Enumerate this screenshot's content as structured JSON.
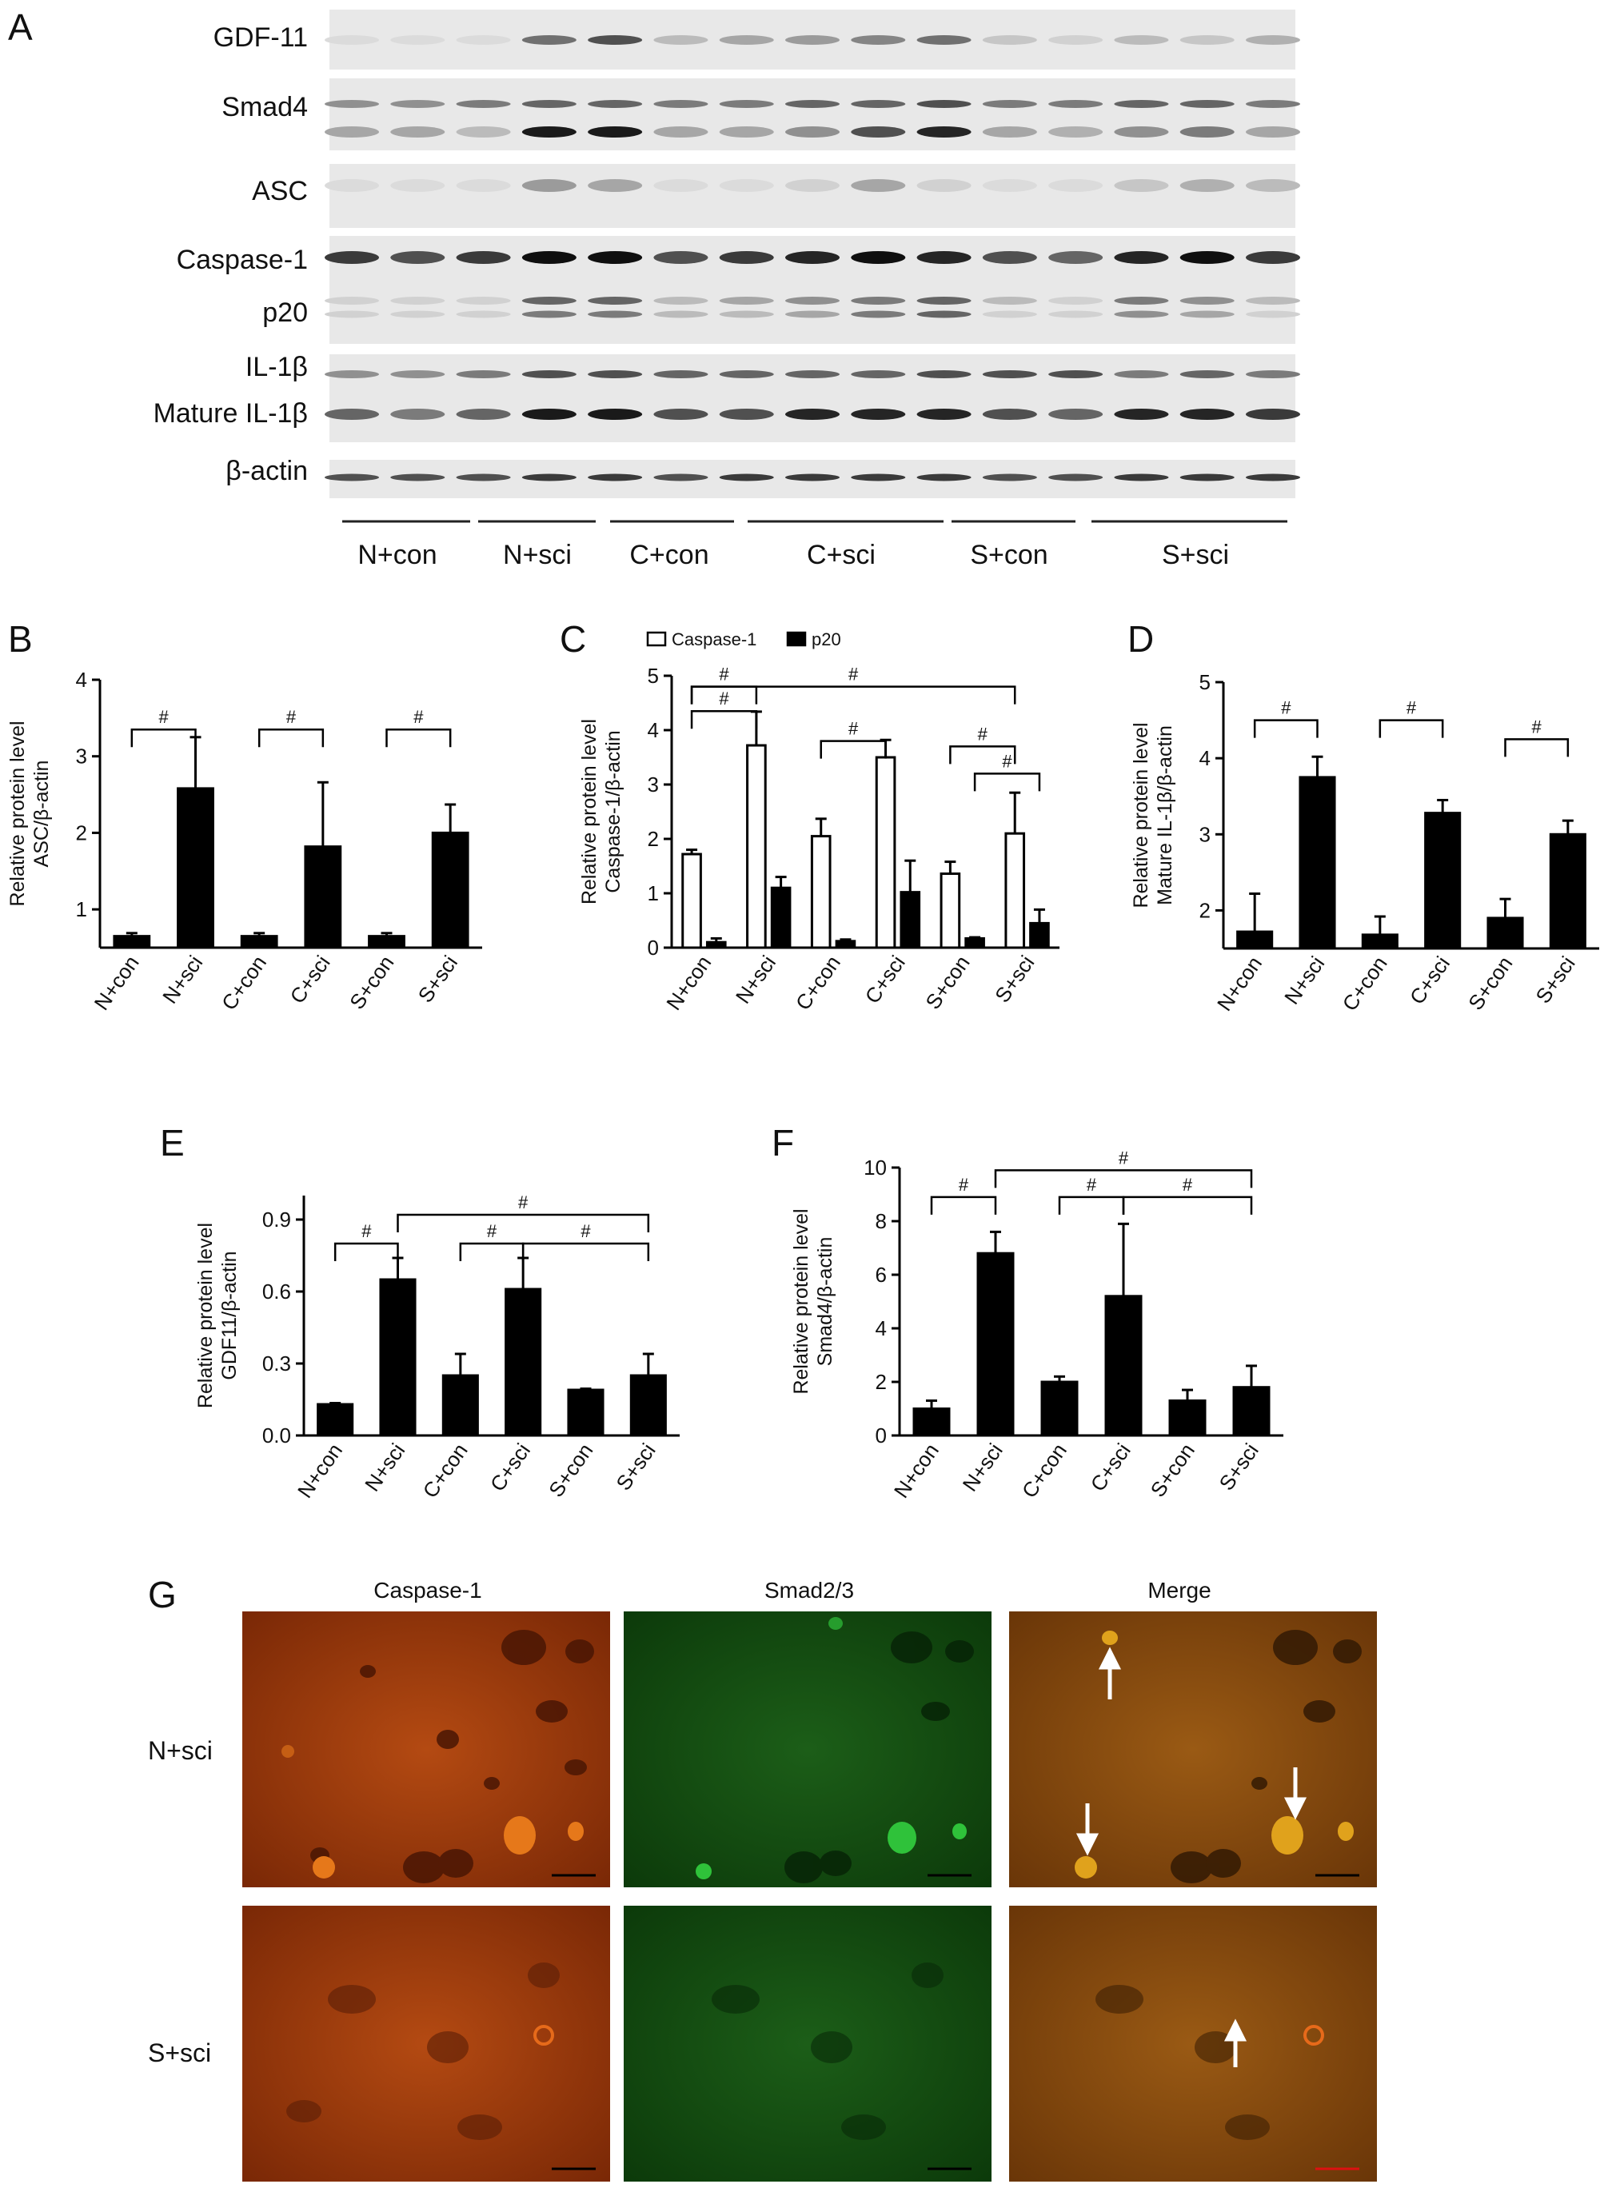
{
  "figure": {
    "panel_letters": [
      "A",
      "B",
      "C",
      "D",
      "E",
      "F",
      "G"
    ]
  },
  "blot": {
    "letter": "A",
    "labels": {
      "gdf11": "GDF-11",
      "smad4": "Smad4",
      "asc": "ASC",
      "caspase1": "Caspase-1",
      "p20": "p20",
      "il1b": "IL-1β",
      "mature_il1b": "Mature IL-1β",
      "actin": "β-actin"
    },
    "groups": [
      "N+con",
      "N+sci",
      "C+con",
      "C+sci",
      "S+con",
      "S+sci"
    ]
  },
  "chart_data": [
    {
      "panel": "B",
      "type": "bar",
      "ylabel": "Relative protein level\nASC/β-actin",
      "ylim": [
        0.5,
        4
      ],
      "yticks": [
        "1",
        "2",
        "3",
        "4"
      ],
      "categories": [
        "N+con",
        "N+sci",
        "C+con",
        "C+sci",
        "S+con",
        "S+sci"
      ],
      "series": [
        {
          "values": [
            0.65,
            2.58,
            0.65,
            1.82,
            0.65,
            2.0
          ],
          "errors": [
            0.04,
            0.67,
            0.04,
            0.84,
            0.04,
            0.37
          ]
        }
      ],
      "significance": [
        "#",
        "#",
        "#"
      ]
    },
    {
      "panel": "C",
      "type": "bar",
      "ylabel": "Relative protein level\nCaspase-1/β-actin",
      "ylim": [
        0,
        5
      ],
      "yticks": [
        "0",
        "1",
        "2",
        "3",
        "4",
        "5"
      ],
      "categories": [
        "N+con",
        "N+sci",
        "C+con",
        "C+sci",
        "S+con",
        "S+sci"
      ],
      "series": [
        {
          "name": "Caspase-1",
          "values": [
            1.72,
            3.72,
            2.05,
            3.5,
            1.36,
            2.1
          ],
          "errors": [
            0.08,
            0.62,
            0.32,
            0.32,
            0.22,
            0.75
          ]
        },
        {
          "name": "p20",
          "values": [
            0.1,
            1.1,
            0.12,
            1.02,
            0.17,
            0.45
          ],
          "errors": [
            0.07,
            0.2,
            0.03,
            0.58,
            0.02,
            0.25
          ]
        }
      ],
      "significance": [
        "#",
        "#",
        "#",
        "#",
        "#",
        "#"
      ]
    },
    {
      "panel": "D",
      "type": "bar",
      "ylabel": "Relative protein level\nMature IL-1β/β-actin",
      "ylim": [
        1.5,
        5
      ],
      "yticks": [
        "2",
        "3",
        "4",
        "5"
      ],
      "categories": [
        "N+con",
        "N+sci",
        "C+con",
        "C+sci",
        "S+con",
        "S+sci"
      ],
      "series": [
        {
          "values": [
            1.72,
            3.75,
            1.68,
            3.28,
            1.9,
            3.0
          ],
          "errors": [
            0.5,
            0.27,
            0.24,
            0.17,
            0.25,
            0.18
          ]
        }
      ],
      "significance": [
        "#",
        "#",
        "#"
      ]
    },
    {
      "panel": "E",
      "type": "bar",
      "ylabel": "Relative protein level\nGDF11/β-actin",
      "ylim": [
        0,
        1.0
      ],
      "yticks": [
        "0.0",
        "0.3",
        "0.6",
        "0.9"
      ],
      "categories": [
        "N+con",
        "N+sci",
        "C+con",
        "C+sci",
        "S+con",
        "S+sci"
      ],
      "series": [
        {
          "values": [
            0.13,
            0.65,
            0.25,
            0.61,
            0.19,
            0.25
          ],
          "errors": [
            0.005,
            0.09,
            0.09,
            0.13,
            0.005,
            0.09
          ]
        }
      ],
      "significance": [
        "#",
        "#",
        "#",
        "#"
      ]
    },
    {
      "panel": "F",
      "type": "bar",
      "ylabel": "Relative protein level\nSmad4/β-actin",
      "ylim": [
        0,
        10
      ],
      "yticks": [
        "0",
        "2",
        "4",
        "6",
        "8",
        "10"
      ],
      "categories": [
        "N+con",
        "N+sci",
        "C+con",
        "C+sci",
        "S+con",
        "S+sci"
      ],
      "series": [
        {
          "values": [
            1.0,
            6.8,
            2.0,
            5.2,
            1.3,
            1.8
          ],
          "errors": [
            0.3,
            0.8,
            0.2,
            2.7,
            0.4,
            0.8
          ]
        }
      ],
      "significance": [
        "#",
        "#",
        "#",
        "#"
      ]
    }
  ],
  "micrographs": {
    "letter": "G",
    "columns": [
      "Caspase-1",
      "Smad2/3",
      "Merge"
    ],
    "rows": [
      "N+sci",
      "S+sci"
    ]
  }
}
